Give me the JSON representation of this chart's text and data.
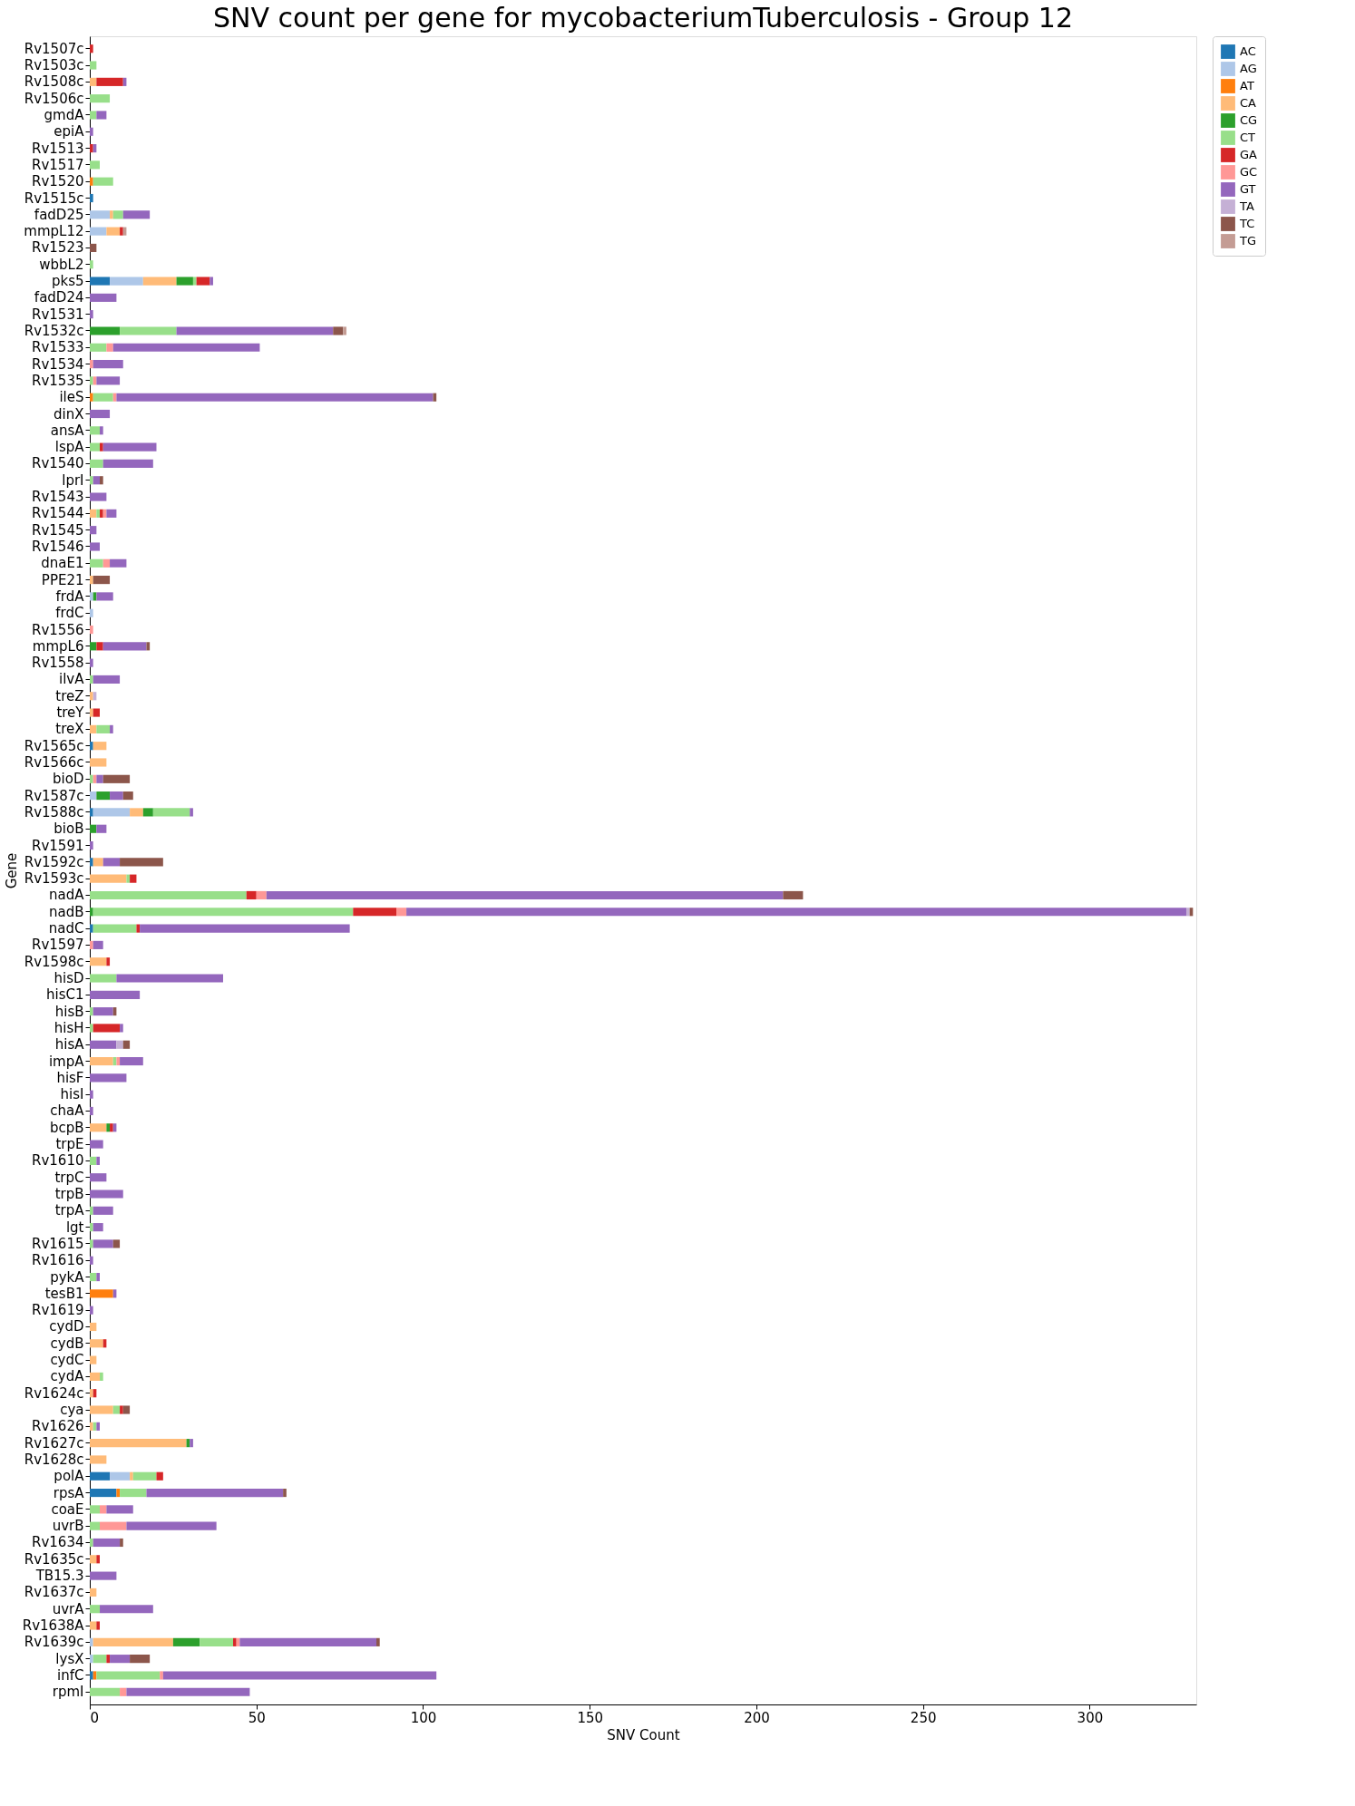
{
  "chart_data": {
    "type": "bar",
    "orientation": "horizontal",
    "stacked": true,
    "title": "SNV count per gene for mycobacteriumTuberculosis - Group 12",
    "xlabel": "SNV Count",
    "ylabel": "Gene",
    "legend": "top right",
    "grid": false,
    "categories": [
      "Rv1507c",
      "Rv1503c",
      "Rv1508c",
      "Rv1506c",
      "gmdA",
      "epiA",
      "Rv1513",
      "Rv1517",
      "Rv1520",
      "Rv1515c",
      "fadD25",
      "mmpL12",
      "Rv1523",
      "wbbL2",
      "pks5",
      "fadD24",
      "Rv1531",
      "Rv1532c",
      "Rv1533",
      "Rv1534",
      "Rv1535",
      "ileS",
      "dinX",
      "ansA",
      "lspA",
      "Rv1540",
      "lprI",
      "Rv1543",
      "Rv1544",
      "Rv1545",
      "Rv1546",
      "dnaE1",
      "PPE21",
      "frdA",
      "frdC",
      "Rv1556",
      "mmpL6",
      "Rv1558",
      "ilvA",
      "treZ",
      "treY",
      "treX",
      "Rv1565c",
      "Rv1566c",
      "bioD",
      "Rv1587c",
      "Rv1588c",
      "bioB",
      "Rv1591",
      "Rv1592c",
      "Rv1593c",
      "nadA",
      "nadB",
      "nadC",
      "Rv1597",
      "Rv1598c",
      "hisD",
      "hisC1",
      "hisB",
      "hisH",
      "hisA",
      "impA",
      "hisF",
      "hisI",
      "chaA",
      "bcpB",
      "trpE",
      "Rv1610",
      "trpC",
      "trpB",
      "trpA",
      "lgt",
      "Rv1615",
      "Rv1616",
      "pykA",
      "tesB1",
      "Rv1619",
      "cydD",
      "cydB",
      "cydC",
      "cydA",
      "Rv1624c",
      "cya",
      "Rv1626",
      "Rv1627c",
      "Rv1628c",
      "polA",
      "rpsA",
      "coaE",
      "uvrB",
      "Rv1634",
      "Rv1635c",
      "TB15.3",
      "Rv1637c",
      "uvrA",
      "Rv1638A",
      "Rv1639c",
      "lysX",
      "infC",
      "rpmI"
    ],
    "xlim": [
      0,
      332
    ],
    "xticks": [
      0,
      50,
      100,
      150,
      200,
      250,
      300
    ],
    "series": [
      {
        "name": "AC",
        "color": "#1f77b4",
        "values": [
          null,
          null,
          null,
          null,
          null,
          null,
          null,
          null,
          null,
          1,
          null,
          null,
          null,
          null,
          6,
          null,
          null,
          null,
          null,
          null,
          null,
          null,
          null,
          null,
          null,
          null,
          null,
          null,
          null,
          null,
          null,
          null,
          null,
          null,
          null,
          null,
          null,
          null,
          null,
          null,
          null,
          null,
          1,
          null,
          null,
          null,
          1,
          null,
          null,
          1,
          null,
          null,
          null,
          1,
          null,
          null,
          null,
          null,
          null,
          null,
          null,
          null,
          null,
          null,
          null,
          null,
          null,
          null,
          null,
          null,
          null,
          null,
          null,
          null,
          null,
          null,
          null,
          null,
          null,
          null,
          null,
          null,
          null,
          null,
          null,
          null,
          6,
          8,
          null,
          null,
          null,
          null,
          null,
          null,
          null,
          null,
          null,
          null,
          1,
          null
        ]
      },
      {
        "name": "AG",
        "color": "#aec7e8",
        "values": [
          null,
          null,
          null,
          null,
          null,
          null,
          null,
          null,
          null,
          null,
          6,
          5,
          null,
          null,
          10,
          null,
          null,
          null,
          null,
          null,
          null,
          null,
          null,
          null,
          null,
          null,
          null,
          null,
          null,
          null,
          null,
          null,
          null,
          1,
          1,
          null,
          null,
          null,
          null,
          null,
          null,
          null,
          null,
          null,
          null,
          2,
          11,
          null,
          null,
          null,
          null,
          null,
          null,
          null,
          null,
          null,
          null,
          null,
          null,
          null,
          null,
          null,
          null,
          null,
          null,
          null,
          null,
          null,
          null,
          null,
          null,
          null,
          null,
          null,
          null,
          null,
          null,
          null,
          null,
          null,
          null,
          null,
          null,
          null,
          null,
          null,
          6,
          null,
          null,
          null,
          null,
          null,
          null,
          null,
          null,
          null,
          1,
          1,
          null,
          null
        ]
      },
      {
        "name": "AT",
        "color": "#ff7f0e",
        "values": [
          null,
          null,
          null,
          null,
          null,
          null,
          null,
          null,
          1,
          null,
          null,
          null,
          null,
          null,
          null,
          null,
          null,
          null,
          null,
          null,
          null,
          1,
          null,
          null,
          null,
          null,
          null,
          null,
          null,
          null,
          null,
          null,
          null,
          null,
          null,
          null,
          null,
          null,
          null,
          null,
          null,
          null,
          null,
          null,
          null,
          null,
          null,
          null,
          null,
          null,
          null,
          null,
          null,
          null,
          null,
          null,
          null,
          null,
          null,
          null,
          null,
          null,
          null,
          null,
          null,
          null,
          null,
          null,
          null,
          null,
          null,
          null,
          null,
          null,
          null,
          7,
          null,
          null,
          null,
          null,
          null,
          null,
          null,
          null,
          null,
          null,
          null,
          1,
          null,
          null,
          null,
          null,
          null,
          null,
          null,
          null,
          null,
          null,
          1,
          null
        ]
      },
      {
        "name": "CA",
        "color": "#ffbb78",
        "values": [
          null,
          null,
          2,
          null,
          null,
          null,
          null,
          null,
          null,
          null,
          1,
          4,
          null,
          null,
          10,
          null,
          null,
          null,
          null,
          null,
          null,
          null,
          null,
          null,
          null,
          null,
          null,
          null,
          2,
          null,
          null,
          null,
          1,
          null,
          null,
          null,
          null,
          null,
          null,
          1,
          1,
          2,
          4,
          5,
          null,
          null,
          4,
          null,
          null,
          3,
          11,
          null,
          null,
          null,
          null,
          5,
          null,
          null,
          null,
          null,
          null,
          7,
          null,
          null,
          null,
          5,
          null,
          null,
          null,
          null,
          null,
          null,
          null,
          null,
          null,
          null,
          null,
          2,
          4,
          2,
          3,
          1,
          7,
          1,
          29,
          5,
          1,
          null,
          null,
          null,
          null,
          2,
          null,
          2,
          null,
          2,
          24,
          null,
          null,
          null
        ]
      },
      {
        "name": "CG",
        "color": "#2ca02c",
        "values": [
          null,
          null,
          null,
          null,
          null,
          null,
          null,
          null,
          null,
          null,
          null,
          null,
          null,
          null,
          5,
          null,
          null,
          9,
          null,
          null,
          null,
          null,
          null,
          null,
          null,
          null,
          null,
          null,
          null,
          null,
          null,
          null,
          null,
          1,
          null,
          null,
          2,
          null,
          null,
          null,
          null,
          null,
          null,
          null,
          null,
          4,
          3,
          2,
          null,
          null,
          null,
          null,
          1,
          null,
          null,
          null,
          null,
          null,
          null,
          null,
          null,
          null,
          null,
          null,
          null,
          1,
          null,
          null,
          null,
          null,
          null,
          null,
          null,
          null,
          null,
          null,
          null,
          null,
          null,
          null,
          null,
          null,
          null,
          null,
          1,
          null,
          null,
          null,
          null,
          null,
          null,
          null,
          null,
          null,
          null,
          null,
          8,
          null,
          null,
          null
        ]
      },
      {
        "name": "CT",
        "color": "#98df8a",
        "values": [
          null,
          2,
          null,
          6,
          2,
          null,
          null,
          3,
          6,
          null,
          3,
          null,
          null,
          1,
          1,
          null,
          null,
          17,
          5,
          null,
          1,
          6,
          null,
          3,
          3,
          4,
          1,
          null,
          1,
          null,
          null,
          4,
          null,
          null,
          null,
          null,
          null,
          null,
          1,
          null,
          null,
          4,
          null,
          null,
          1,
          null,
          11,
          null,
          null,
          null,
          1,
          47,
          78,
          13,
          null,
          null,
          8,
          null,
          1,
          1,
          null,
          1,
          null,
          null,
          null,
          null,
          null,
          2,
          null,
          null,
          1,
          1,
          1,
          null,
          2,
          null,
          null,
          null,
          null,
          null,
          1,
          null,
          2,
          1,
          null,
          null,
          7,
          8,
          3,
          3,
          1,
          null,
          null,
          null,
          3,
          null,
          10,
          4,
          19,
          9
        ]
      },
      {
        "name": "GA",
        "color": "#d62728",
        "values": [
          1,
          null,
          8,
          null,
          null,
          null,
          1,
          null,
          null,
          null,
          null,
          1,
          null,
          null,
          4,
          null,
          null,
          null,
          null,
          null,
          null,
          null,
          null,
          null,
          1,
          null,
          null,
          null,
          1,
          null,
          null,
          null,
          null,
          null,
          null,
          null,
          2,
          null,
          null,
          null,
          2,
          null,
          null,
          null,
          null,
          null,
          null,
          null,
          null,
          null,
          2,
          3,
          13,
          1,
          null,
          1,
          null,
          null,
          null,
          8,
          null,
          null,
          null,
          null,
          null,
          1,
          null,
          null,
          null,
          null,
          null,
          null,
          null,
          null,
          null,
          null,
          null,
          null,
          1,
          null,
          null,
          1,
          1,
          null,
          null,
          null,
          2,
          null,
          null,
          null,
          null,
          1,
          null,
          null,
          null,
          1,
          1,
          1,
          null,
          null
        ]
      },
      {
        "name": "GC",
        "color": "#ff9896",
        "values": [
          null,
          null,
          null,
          null,
          null,
          null,
          null,
          null,
          null,
          null,
          null,
          null,
          null,
          null,
          null,
          null,
          null,
          null,
          2,
          1,
          1,
          1,
          null,
          null,
          null,
          null,
          null,
          null,
          1,
          null,
          null,
          2,
          null,
          null,
          null,
          1,
          null,
          null,
          null,
          null,
          null,
          null,
          null,
          null,
          1,
          null,
          null,
          null,
          null,
          null,
          null,
          3,
          3,
          null,
          1,
          null,
          null,
          null,
          null,
          null,
          null,
          1,
          null,
          null,
          null,
          null,
          null,
          null,
          null,
          null,
          null,
          null,
          null,
          null,
          null,
          null,
          null,
          null,
          null,
          null,
          null,
          null,
          null,
          null,
          null,
          null,
          null,
          null,
          2,
          8,
          null,
          null,
          null,
          null,
          null,
          null,
          1,
          null,
          1,
          2
        ]
      },
      {
        "name": "GT",
        "color": "#9467bd",
        "values": [
          null,
          null,
          1,
          null,
          3,
          1,
          1,
          null,
          null,
          null,
          8,
          null,
          null,
          null,
          1,
          8,
          1,
          47,
          44,
          9,
          7,
          95,
          6,
          1,
          16,
          15,
          2,
          5,
          3,
          2,
          3,
          5,
          null,
          5,
          null,
          null,
          13,
          1,
          8,
          null,
          null,
          1,
          null,
          null,
          2,
          4,
          1,
          3,
          1,
          5,
          null,
          155,
          234,
          63,
          3,
          null,
          32,
          15,
          6,
          1,
          8,
          7,
          11,
          1,
          1,
          1,
          4,
          1,
          5,
          10,
          6,
          3,
          6,
          1,
          1,
          1,
          1,
          null,
          null,
          null,
          null,
          null,
          null,
          1,
          1,
          null,
          null,
          41,
          8,
          27,
          8,
          null,
          8,
          null,
          16,
          null,
          41,
          6,
          82,
          37
        ]
      },
      {
        "name": "TA",
        "color": "#c5b0d5",
        "values": [
          null,
          null,
          null,
          null,
          null,
          null,
          null,
          null,
          null,
          null,
          null,
          null,
          null,
          null,
          null,
          null,
          null,
          null,
          null,
          null,
          null,
          null,
          null,
          null,
          null,
          null,
          null,
          null,
          null,
          null,
          null,
          null,
          null,
          null,
          null,
          null,
          null,
          null,
          null,
          1,
          null,
          null,
          null,
          null,
          null,
          null,
          null,
          null,
          null,
          null,
          null,
          null,
          1,
          null,
          null,
          null,
          null,
          null,
          null,
          null,
          2,
          null,
          null,
          null,
          null,
          null,
          null,
          null,
          null,
          null,
          null,
          null,
          null,
          null,
          null,
          null,
          null,
          null,
          null,
          null,
          null,
          null,
          null,
          null,
          null,
          null,
          null,
          null,
          null,
          null,
          null,
          null,
          null,
          null,
          null,
          null,
          null,
          null,
          null,
          null
        ]
      },
      {
        "name": "TC",
        "color": "#8c564b",
        "values": [
          null,
          null,
          null,
          null,
          null,
          null,
          null,
          null,
          null,
          null,
          null,
          null,
          2,
          null,
          null,
          null,
          null,
          3,
          null,
          null,
          null,
          1,
          null,
          null,
          null,
          null,
          1,
          null,
          null,
          null,
          null,
          null,
          5,
          null,
          null,
          null,
          1,
          null,
          null,
          null,
          null,
          null,
          null,
          null,
          8,
          3,
          null,
          null,
          null,
          13,
          null,
          6,
          1,
          null,
          null,
          null,
          null,
          null,
          1,
          null,
          2,
          null,
          null,
          null,
          null,
          null,
          null,
          null,
          null,
          null,
          null,
          null,
          2,
          null,
          null,
          null,
          null,
          null,
          null,
          null,
          null,
          null,
          2,
          null,
          null,
          null,
          null,
          1,
          null,
          null,
          1,
          null,
          null,
          null,
          null,
          null,
          1,
          6,
          null,
          null
        ]
      },
      {
        "name": "TG",
        "color": "#c49c94",
        "values": [
          null,
          null,
          null,
          null,
          null,
          null,
          null,
          null,
          null,
          null,
          null,
          1,
          null,
          null,
          null,
          null,
          null,
          1,
          null,
          null,
          null,
          null,
          null,
          null,
          null,
          null,
          null,
          null,
          null,
          null,
          null,
          null,
          null,
          null,
          null,
          null,
          null,
          null,
          null,
          null,
          null,
          null,
          null,
          null,
          null,
          null,
          null,
          null,
          null,
          null,
          null,
          null,
          null,
          null,
          null,
          null,
          null,
          null,
          null,
          null,
          null,
          null,
          null,
          null,
          null,
          null,
          null,
          null,
          null,
          null,
          null,
          null,
          null,
          null,
          null,
          null,
          null,
          null,
          null,
          null,
          null,
          null,
          null,
          null,
          null,
          null,
          null,
          null,
          null,
          null,
          null,
          null,
          null,
          null,
          null,
          null,
          null,
          null,
          null,
          null
        ]
      }
    ]
  }
}
